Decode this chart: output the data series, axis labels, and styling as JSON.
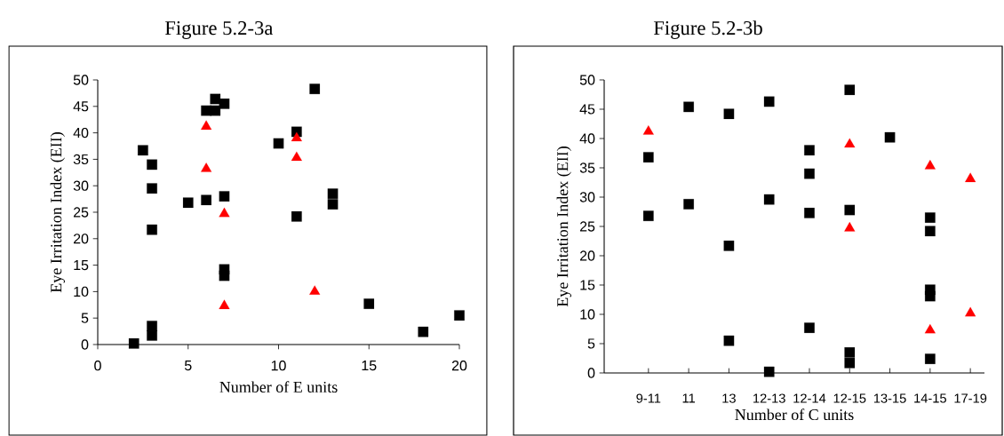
{
  "chart_data": [
    {
      "type": "scatter",
      "title": "Figure 5.2-3a",
      "xlabel": "Number of E units",
      "ylabel": "Eye Irritation Index (EII)",
      "xlim": [
        0,
        20
      ],
      "xticks": [
        0,
        5,
        10,
        15,
        20
      ],
      "ylim": [
        0,
        50
      ],
      "yticks": [
        0,
        5,
        10,
        15,
        20,
        25,
        30,
        35,
        40,
        45,
        50
      ],
      "grid": false,
      "series": [
        {
          "color": "#000000",
          "marker": "square",
          "x": [
            2,
            2.5,
            3,
            3,
            3,
            3,
            3,
            5,
            6,
            6,
            6.5,
            6.5,
            7,
            7,
            7,
            7,
            10,
            11,
            11,
            12,
            13,
            13,
            15,
            18,
            20
          ],
          "values": [
            0.2,
            36.7,
            34,
            29.5,
            21.7,
            3.5,
            1.7,
            26.8,
            27.3,
            44.2,
            44.2,
            46.4,
            45.5,
            28,
            14.2,
            13,
            38,
            40.2,
            24.2,
            48.3,
            28.5,
            26.5,
            7.7,
            2.4,
            5.5
          ]
        },
        {
          "color": "#ff0000",
          "marker": "triangle",
          "x": [
            6,
            6,
            7,
            7,
            11,
            11,
            12
          ],
          "values": [
            41.2,
            33.2,
            24.7,
            7.3,
            39,
            35.3,
            10
          ]
        }
      ]
    },
    {
      "type": "scatter",
      "title": "Figure 5.2-3b",
      "xlabel": "Number of C units",
      "ylabel": "Eye Irritation Index (EII)",
      "categories": [
        null,
        "9-11",
        "11",
        "13",
        "12-13",
        "12-14",
        "12-15",
        "13-15",
        "14-15",
        "17-19"
      ],
      "ylim": [
        0,
        50
      ],
      "yticks": [
        0,
        5,
        10,
        15,
        20,
        25,
        30,
        35,
        40,
        45,
        50
      ],
      "grid": false,
      "series": [
        {
          "color": "#000000",
          "marker": "square",
          "x": [
            "9-11",
            "9-11",
            "11",
            "11",
            "13",
            "13",
            "13",
            "12-13",
            "12-13",
            "12-13",
            "12-14",
            "12-14",
            "12-14",
            "12-14",
            "12-15",
            "12-15",
            "12-15",
            "12-15",
            "13-15",
            "14-15",
            "14-15",
            "14-15",
            "14-15",
            "14-15"
          ],
          "values": [
            36.8,
            26.8,
            45.4,
            28.8,
            44.2,
            21.7,
            5.5,
            46.3,
            29.6,
            0.2,
            38,
            34,
            27.3,
            7.7,
            48.3,
            27.8,
            3.5,
            1.7,
            40.2,
            26.5,
            24.2,
            14.2,
            13.1,
            2.4
          ]
        },
        {
          "color": "#ff0000",
          "marker": "triangle",
          "x": [
            "9-11",
            "12-15",
            "12-15",
            "14-15",
            "14-15",
            "17-19",
            "17-19"
          ],
          "values": [
            41.2,
            39,
            24.7,
            35.3,
            7.3,
            33.1,
            10.2
          ]
        }
      ]
    }
  ]
}
